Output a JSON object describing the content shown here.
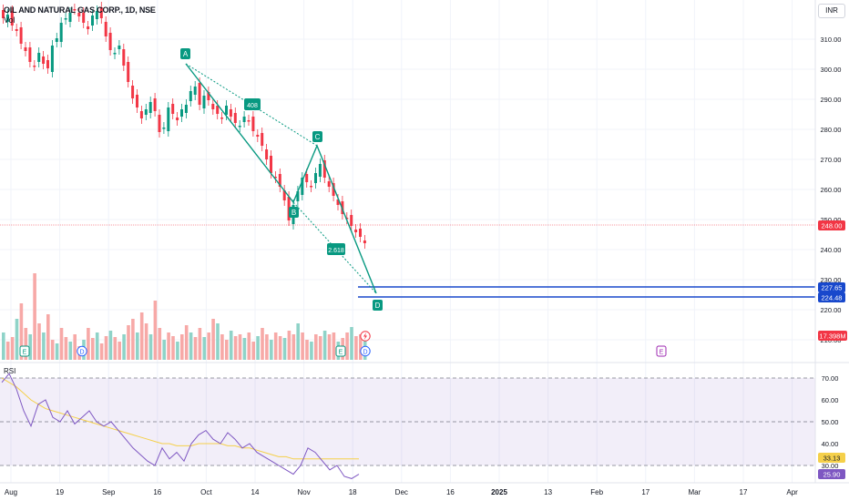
{
  "header": {
    "symbol_title": "OIL AND NATURAL GAS CORP., 1D, NSE",
    "volume_label": "Vol"
  },
  "currency": "INR",
  "price_axis": [
    "310.00",
    "300.00",
    "290.00",
    "280.00",
    "270.00",
    "260.00",
    "250.00",
    "240.00",
    "230.00",
    "220.00",
    "210.00"
  ],
  "price_tags": {
    "last": {
      "text": "248.00",
      "color": "#f23645"
    },
    "target_upper": {
      "text": "227.65",
      "color": "#1848cc"
    },
    "target_lower": {
      "text": "224.48",
      "color": "#1848cc"
    },
    "volume": {
      "text": "17.398M",
      "color": "#f23645"
    }
  },
  "pattern": {
    "points": [
      "A",
      "B",
      "C",
      "D"
    ],
    "ratios": [
      "408",
      "2.618"
    ],
    "color": "#089981"
  },
  "event_markers": [
    "E",
    "D",
    "E",
    "D",
    "E"
  ],
  "rsi": {
    "title": "RSI",
    "axis": [
      "70.00",
      "60.00",
      "50.00",
      "40.00",
      "30.00"
    ],
    "tags": {
      "rsi_ma": "33.13",
      "rsi": "25.90"
    },
    "line_color": "#7e57c2",
    "ma_color": "#f5d04a"
  },
  "time_axis": [
    "Aug",
    "19",
    "Sep",
    "16",
    "Oct",
    "14",
    "Nov",
    "18",
    "Dec",
    "16",
    "2025",
    "13",
    "Feb",
    "17",
    "Mar",
    "17",
    "Apr"
  ],
  "colors": {
    "up": "#089981",
    "down": "#f23645",
    "vol_up": "#8fd3c8",
    "vol_down": "#f7a9a7"
  }
}
